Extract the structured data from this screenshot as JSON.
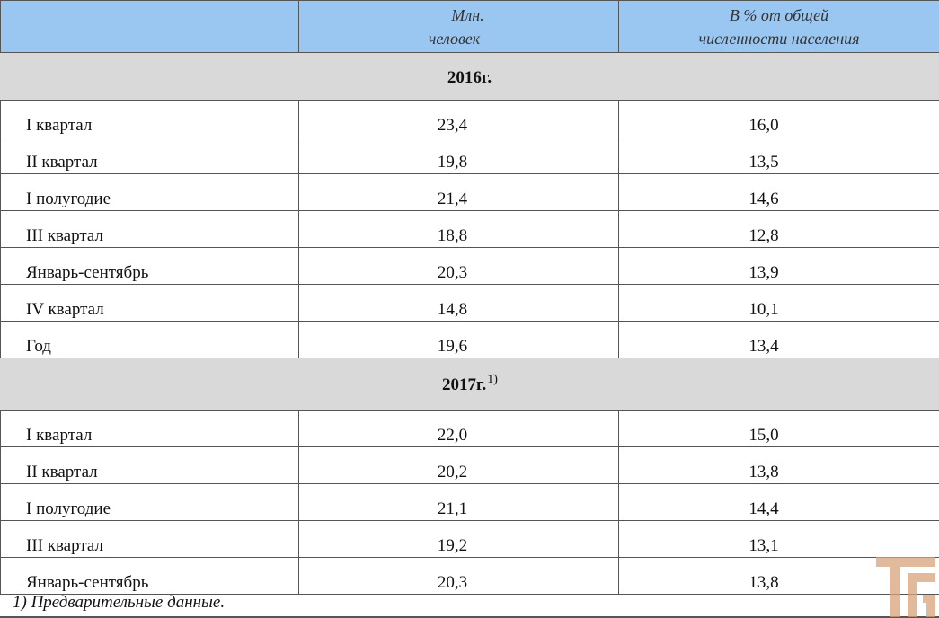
{
  "header": {
    "col1": "",
    "col2_line1": "Млн.",
    "col2_line2": "человек",
    "col3_line1": "В %  от общей",
    "col3_line2": "численности населения"
  },
  "sections": [
    {
      "year": "2016г.",
      "note": "",
      "rows": [
        {
          "label": "I квартал",
          "mln": "23,4",
          "pct": "16,0"
        },
        {
          "label": "II квартал",
          "mln": "19,8",
          "pct": "13,5"
        },
        {
          "label": "I полугодие",
          "mln": "21,4",
          "pct": "14,6"
        },
        {
          "label": "III квартал",
          "mln": "18,8",
          "pct": "12,8"
        },
        {
          "label": "Январь-сентябрь",
          "mln": "20,3",
          "pct": "13,9"
        },
        {
          "label": "IV квартал",
          "mln": "14,8",
          "pct": "10,1"
        },
        {
          "label": "Год",
          "mln": "19,6",
          "pct": "13,4"
        }
      ]
    },
    {
      "year": "2017г.",
      "note": "1)",
      "rows": [
        {
          "label": "I квартал",
          "mln": "22,0",
          "pct": "15,0"
        },
        {
          "label": "II квартал",
          "mln": "20,2",
          "pct": "13,8"
        },
        {
          "label": "I полугодие",
          "mln": "21,1",
          "pct": "14,4"
        },
        {
          "label": "III квартал",
          "mln": "19,2",
          "pct": "13,1"
        },
        {
          "label": "Январь-сентябрь",
          "mln": "20,3",
          "pct": "13,8"
        }
      ]
    }
  ],
  "footnote": "1) Предварительные данные.",
  "colors": {
    "header_bg": "#9ac7f2",
    "year_bg": "#d9d9d9",
    "logo": "#d8a37a"
  },
  "logo_icon": "watermark-logo-icon"
}
